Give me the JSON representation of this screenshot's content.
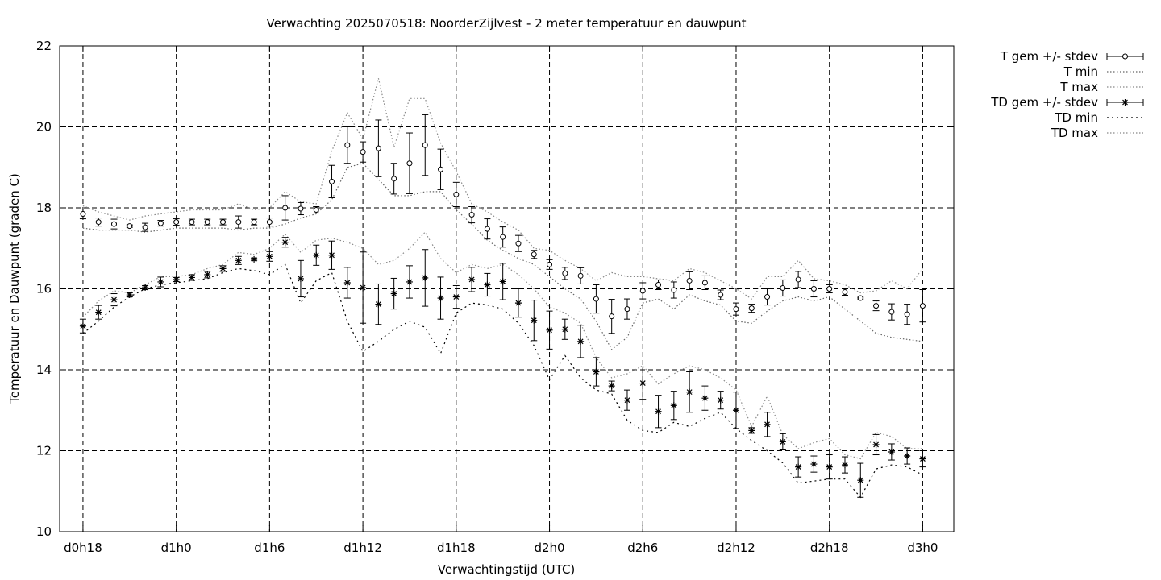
{
  "chart_data": {
    "type": "line",
    "title": "Verwachting 2025070518: NoorderZijlvest - 2 meter temperatuur en dauwpunt",
    "xlabel": "Verwachtingstijd (UTC)",
    "ylabel": "Temperatuur en Dauwpunt (graden C)",
    "ylim": [
      10,
      22
    ],
    "yticks": [
      10,
      12,
      14,
      16,
      18,
      20,
      22
    ],
    "x_ticks": [
      {
        "label": "d0h18",
        "hour": 18
      },
      {
        "label": "d1h0",
        "hour": 24
      },
      {
        "label": "d1h6",
        "hour": 30
      },
      {
        "label": "d1h12",
        "hour": 36
      },
      {
        "label": "d1h18",
        "hour": 42
      },
      {
        "label": "d2h0",
        "hour": 48
      },
      {
        "label": "d2h6",
        "hour": 54
      },
      {
        "label": "d2h12",
        "hour": 60
      },
      {
        "label": "d2h18",
        "hour": 66
      },
      {
        "label": "d3h0",
        "hour": 72
      }
    ],
    "xlim": [
      16.5,
      74
    ],
    "grid": true,
    "legend_position": "outside-top-right",
    "x": [
      18,
      19,
      20,
      21,
      22,
      23,
      24,
      25,
      26,
      27,
      28,
      29,
      30,
      31,
      32,
      33,
      34,
      35,
      36,
      37,
      38,
      39,
      40,
      41,
      42,
      43,
      44,
      45,
      46,
      47,
      48,
      49,
      50,
      51,
      52,
      53,
      54,
      55,
      56,
      57,
      58,
      59,
      60,
      61,
      62,
      63,
      64,
      65,
      66,
      67,
      68,
      69,
      70,
      71,
      72
    ],
    "series": [
      {
        "name": "T gem +/- stdev",
        "marker": "circle",
        "mean": [
          17.85,
          17.65,
          17.6,
          17.55,
          17.52,
          17.62,
          17.65,
          17.65,
          17.65,
          17.65,
          17.65,
          17.65,
          17.65,
          18.0,
          17.98,
          17.95,
          18.65,
          19.55,
          19.38,
          19.47,
          18.72,
          19.1,
          19.55,
          18.95,
          18.33,
          17.83,
          17.48,
          17.28,
          17.12,
          16.85,
          16.6,
          16.38,
          16.32,
          15.75,
          15.32,
          15.5,
          15.95,
          16.1,
          15.97,
          16.2,
          16.15,
          15.85,
          15.5,
          15.52,
          15.8,
          16.02,
          16.23,
          16.0,
          16.0,
          15.92,
          15.77,
          15.58,
          15.43,
          15.37,
          15.58
        ],
        "stdev": [
          0.12,
          0.1,
          0.12,
          0.03,
          0.1,
          0.07,
          0.08,
          0.07,
          0.07,
          0.07,
          0.15,
          0.07,
          0.1,
          0.3,
          0.15,
          0.08,
          0.4,
          0.45,
          0.25,
          0.7,
          0.38,
          0.75,
          0.75,
          0.5,
          0.3,
          0.2,
          0.25,
          0.25,
          0.2,
          0.1,
          0.12,
          0.15,
          0.2,
          0.35,
          0.42,
          0.25,
          0.2,
          0.12,
          0.2,
          0.22,
          0.17,
          0.12,
          0.15,
          0.1,
          0.2,
          0.2,
          0.2,
          0.2,
          0.1,
          0.08,
          0.02,
          0.12,
          0.2,
          0.25,
          0.4
        ]
      },
      {
        "name": "T min",
        "values": [
          17.5,
          17.45,
          17.45,
          17.45,
          17.4,
          17.45,
          17.5,
          17.5,
          17.5,
          17.5,
          17.45,
          17.5,
          17.5,
          17.6,
          17.75,
          17.85,
          18.2,
          19.0,
          19.1,
          18.7,
          18.3,
          18.3,
          18.4,
          18.4,
          17.95,
          17.6,
          17.2,
          16.95,
          16.75,
          16.6,
          16.3,
          16.0,
          15.75,
          15.2,
          14.5,
          14.8,
          15.65,
          15.75,
          15.5,
          15.85,
          15.7,
          15.6,
          15.2,
          15.15,
          15.45,
          15.7,
          15.8,
          15.7,
          15.8,
          15.5,
          15.2,
          14.9,
          14.8,
          14.75,
          14.7
        ]
      },
      {
        "name": "T max",
        "values": [
          18.05,
          17.9,
          17.8,
          17.7,
          17.8,
          17.85,
          17.9,
          17.95,
          17.95,
          17.95,
          18.1,
          17.95,
          18.0,
          18.4,
          18.15,
          18.1,
          19.4,
          20.35,
          19.7,
          21.2,
          19.5,
          20.7,
          20.7,
          19.6,
          18.9,
          18.1,
          17.9,
          17.65,
          17.45,
          17.0,
          16.95,
          16.7,
          16.5,
          16.2,
          16.4,
          16.3,
          16.3,
          16.25,
          16.2,
          16.5,
          16.4,
          16.2,
          16.0,
          15.75,
          16.3,
          16.3,
          16.7,
          16.25,
          16.2,
          16.1,
          15.9,
          15.95,
          16.2,
          16.0,
          16.5
        ]
      },
      {
        "name": "TD gem +/- stdev",
        "marker": "star",
        "mean": [
          15.08,
          15.42,
          15.73,
          15.85,
          16.03,
          16.17,
          16.23,
          16.28,
          16.35,
          16.5,
          16.7,
          16.73,
          16.8,
          17.15,
          16.25,
          16.83,
          16.83,
          16.15,
          16.03,
          15.62,
          15.88,
          16.17,
          16.27,
          15.77,
          15.8,
          16.23,
          16.1,
          16.18,
          15.65,
          15.22,
          14.98,
          15.0,
          14.7,
          13.95,
          13.6,
          13.25,
          13.67,
          12.97,
          13.12,
          13.45,
          13.3,
          13.25,
          13.0,
          12.5,
          12.65,
          12.22,
          11.6,
          11.67,
          11.6,
          11.65,
          11.27,
          12.15,
          11.97,
          11.87,
          11.8
        ],
        "stdev": [
          0.17,
          0.17,
          0.15,
          0.05,
          0.05,
          0.12,
          0.05,
          0.07,
          0.08,
          0.07,
          0.1,
          0.03,
          0.12,
          0.12,
          0.45,
          0.25,
          0.35,
          0.38,
          0.88,
          0.5,
          0.38,
          0.4,
          0.7,
          0.52,
          0.28,
          0.3,
          0.28,
          0.45,
          0.35,
          0.5,
          0.47,
          0.25,
          0.4,
          0.35,
          0.12,
          0.25,
          0.4,
          0.4,
          0.35,
          0.5,
          0.3,
          0.22,
          0.45,
          0.07,
          0.3,
          0.2,
          0.25,
          0.2,
          0.3,
          0.2,
          0.42,
          0.25,
          0.2,
          0.2,
          0.2
        ]
      },
      {
        "name": "TD min",
        "values": [
          14.9,
          15.2,
          15.55,
          15.8,
          16.0,
          16.1,
          16.15,
          16.2,
          16.25,
          16.4,
          16.5,
          16.45,
          16.35,
          16.6,
          15.65,
          16.2,
          16.4,
          15.2,
          14.45,
          14.7,
          15.0,
          15.2,
          15.05,
          14.4,
          15.4,
          15.65,
          15.6,
          15.5,
          15.15,
          14.6,
          13.75,
          14.35,
          13.8,
          13.5,
          13.4,
          12.75,
          12.5,
          12.45,
          12.7,
          12.6,
          12.8,
          12.95,
          12.55,
          12.25,
          12.0,
          11.7,
          11.2,
          11.25,
          11.3,
          11.3,
          10.85,
          11.55,
          11.65,
          11.6,
          11.4
        ]
      },
      {
        "name": "TD max",
        "values": [
          15.3,
          15.7,
          15.95,
          15.9,
          16.1,
          16.3,
          16.3,
          16.35,
          16.5,
          16.6,
          16.9,
          16.85,
          17.0,
          17.35,
          16.9,
          17.2,
          17.25,
          17.15,
          17.0,
          16.6,
          16.7,
          17.0,
          17.4,
          16.75,
          16.4,
          16.6,
          16.5,
          16.6,
          16.35,
          16.0,
          15.55,
          15.4,
          15.15,
          14.3,
          13.8,
          13.9,
          14.1,
          13.65,
          13.9,
          14.1,
          14.0,
          13.8,
          13.5,
          12.6,
          13.35,
          12.4,
          12.05,
          12.2,
          12.3,
          11.9,
          11.8,
          12.45,
          12.35,
          12.05,
          12.05
        ]
      }
    ]
  }
}
